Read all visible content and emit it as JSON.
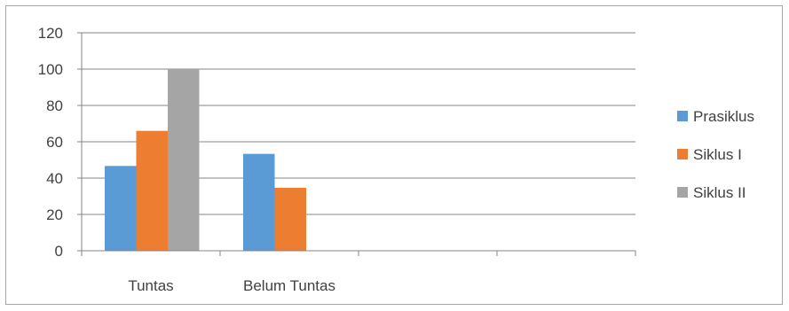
{
  "chart_data": {
    "type": "bar",
    "categories": [
      "Tuntas",
      "Belum Tuntas",
      "",
      ""
    ],
    "series": [
      {
        "name": "Prasiklus",
        "values": [
          46.67,
          53.33,
          null,
          null
        ],
        "color": "#5b9bd5"
      },
      {
        "name": "Siklus I",
        "values": [
          66,
          34.67,
          null,
          null
        ],
        "color": "#ed7d31"
      },
      {
        "name": "Siklus II",
        "values": [
          100,
          null,
          null,
          null
        ],
        "color": "#a5a5a5"
      }
    ],
    "ylim": [
      0,
      120
    ],
    "yticks": [
      0,
      20,
      40,
      60,
      80,
      100,
      120
    ],
    "grid": true,
    "legend_position": "right",
    "gridline_color": "#868686",
    "axis_color": "#868686",
    "text_color": "#404040"
  }
}
